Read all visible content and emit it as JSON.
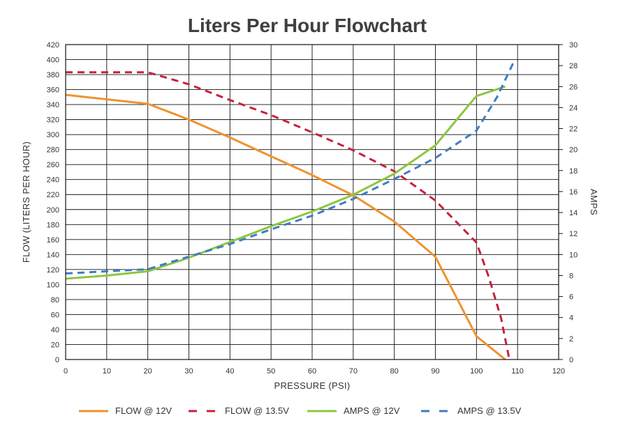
{
  "chart_data": {
    "type": "line",
    "title": "Liters Per Hour Flowchart",
    "xlabel": "PRESSURE (PSI)",
    "ylabel": "FLOW (LITERS PER HOUR)",
    "y2label": "AMPS",
    "xlim": [
      0,
      120
    ],
    "ylim": [
      0,
      420
    ],
    "y2lim": [
      0,
      30
    ],
    "x_ticks": [
      0,
      10,
      20,
      30,
      40,
      50,
      60,
      70,
      80,
      90,
      100,
      110,
      120
    ],
    "y_ticks": [
      0,
      20,
      40,
      60,
      80,
      100,
      120,
      140,
      160,
      180,
      200,
      220,
      240,
      260,
      280,
      300,
      320,
      340,
      360,
      380,
      400,
      420
    ],
    "y2_ticks": [
      0,
      2,
      4,
      6,
      8,
      10,
      12,
      14,
      16,
      18,
      20,
      22,
      24,
      26,
      28,
      30
    ],
    "grid": true,
    "legend_position": "bottom",
    "series": [
      {
        "name": "FLOW @ 12V",
        "axis": "left",
        "color": "#F0922F",
        "dashed": false,
        "x": [
          0,
          20,
          30,
          40,
          50,
          60,
          70,
          80,
          90,
          100,
          107
        ],
        "y": [
          353,
          341,
          320,
          296,
          271,
          246,
          219,
          184,
          137,
          31,
          0
        ]
      },
      {
        "name": "FLOW @ 13.5V",
        "axis": "left",
        "color": "#C8213A",
        "dashed": true,
        "x": [
          0,
          20,
          30,
          40,
          50,
          60,
          70,
          80,
          90,
          100,
          103,
          106,
          108
        ],
        "y": [
          383,
          383,
          367,
          346,
          326,
          303,
          279,
          251,
          212,
          156,
          110,
          55,
          0
        ]
      },
      {
        "name": "AMPS @ 12V",
        "axis": "right",
        "color": "#8DC63F",
        "dashed": false,
        "x": [
          0,
          10,
          20,
          30,
          40,
          50,
          60,
          70,
          80,
          90,
          100,
          107
        ],
        "y": [
          7.7,
          8.0,
          8.4,
          9.7,
          11.2,
          12.7,
          14.1,
          15.7,
          17.7,
          20.4,
          25.1,
          26.0
        ]
      },
      {
        "name": "AMPS @ 13.5V",
        "axis": "right",
        "color": "#3F7CC4",
        "dashed": true,
        "x": [
          0,
          10,
          20,
          30,
          40,
          50,
          60,
          70,
          80,
          90,
          100,
          105,
          109
        ],
        "y": [
          8.2,
          8.4,
          8.6,
          9.8,
          11.0,
          12.4,
          13.7,
          15.3,
          17.2,
          19.2,
          21.8,
          25.0,
          28.3
        ]
      }
    ]
  }
}
